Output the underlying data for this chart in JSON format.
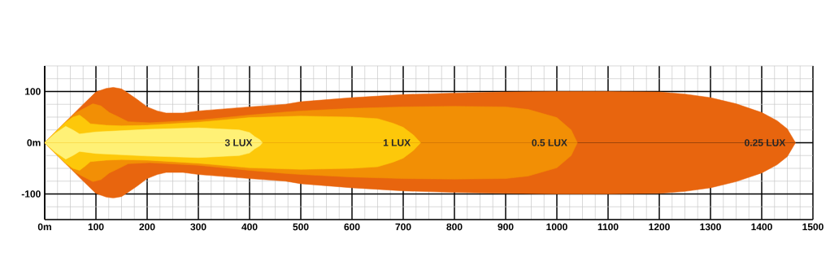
{
  "chart_data": {
    "type": "area",
    "xlim": [
      0,
      1500
    ],
    "ylim": [
      -150,
      150
    ],
    "xticks": [
      {
        "value": 0,
        "label": "0m"
      },
      100,
      200,
      300,
      400,
      500,
      600,
      700,
      800,
      900,
      1000,
      1100,
      1200,
      1300,
      1400,
      1500
    ],
    "yticks": [
      -100,
      {
        "value": 0,
        "label": "0m"
      },
      100
    ],
    "grid": true,
    "legend": false,
    "series": [
      {
        "name": "0.25 LUX",
        "color": "#e8650e",
        "x": [
          0,
          20,
          41,
          70,
          100,
          120,
          134,
          150,
          158,
          180,
          200,
          220,
          237,
          270,
          300,
          400,
          470,
          500,
          600,
          700,
          800,
          900,
          1000,
          1100,
          1200,
          1250,
          1300,
          1350,
          1400,
          1430,
          1450,
          1466
        ],
        "values": [
          0,
          20,
          41,
          70,
          99,
          106,
          108,
          105,
          100,
          85,
          70,
          62,
          58,
          58,
          62,
          70,
          75,
          80,
          88,
          94,
          97,
          99,
          100,
          100,
          99,
          95,
          88,
          76,
          59,
          43,
          27,
          0
        ]
      },
      {
        "color": "#e8650e",
        "x": [
          0,
          20,
          41,
          70,
          100,
          120,
          134,
          150,
          158,
          180,
          200,
          220,
          237,
          270,
          300,
          400,
          470,
          500,
          600,
          700,
          800,
          900,
          1000,
          1100,
          1200,
          1250,
          1300,
          1350,
          1400,
          1430,
          1450,
          1466
        ],
        "values": [
          0,
          -20,
          -41,
          -70,
          -99,
          -106,
          -108,
          -105,
          -100,
          -85,
          -70,
          -62,
          -58,
          -58,
          -62,
          -70,
          -75,
          -80,
          -88,
          -94,
          -97,
          -99,
          -100,
          -100,
          -99,
          -95,
          -88,
          -76,
          -59,
          -43,
          -27,
          0
        ]
      },
      {
        "name": "0.5 LUX",
        "color": "#f28f05",
        "x": [
          0,
          20,
          40,
          60,
          73,
          94,
          110,
          126,
          145,
          163,
          205,
          300,
          400,
          470,
          500,
          600,
          700,
          800,
          900,
          944,
          1000,
          1028,
          1040
        ],
        "values": [
          0,
          20,
          40,
          58,
          65,
          76,
          72,
          59,
          50,
          41,
          39,
          44,
          54,
          60,
          62,
          67,
          70,
          71,
          70,
          65,
          49,
          25,
          0
        ]
      },
      {
        "color": "#f28f05",
        "x": [
          0,
          20,
          40,
          60,
          73,
          94,
          110,
          126,
          145,
          163,
          205,
          300,
          400,
          470,
          500,
          600,
          700,
          800,
          900,
          944,
          1000,
          1028,
          1040
        ],
        "values": [
          0,
          -20,
          -40,
          -58,
          -65,
          -76,
          -72,
          -59,
          -50,
          -41,
          -39,
          -44,
          -54,
          -60,
          -62,
          -67,
          -70,
          -71,
          -70,
          -65,
          -49,
          -25,
          0
        ]
      },
      {
        "name": "1 LUX",
        "color": "#fdc80a",
        "x": [
          0,
          20,
          41,
          55,
          68,
          80,
          89,
          120,
          150,
          200,
          300,
          400,
          500,
          600,
          650,
          680,
          700,
          720,
          734
        ],
        "values": [
          0,
          20,
          40,
          50,
          54,
          45,
          37,
          34,
          33,
          34,
          40,
          49,
          52,
          50,
          47,
          38,
          30,
          15,
          0
        ]
      },
      {
        "color": "#fdc80a",
        "x": [
          0,
          20,
          41,
          55,
          68,
          80,
          89,
          120,
          150,
          200,
          300,
          400,
          500,
          600,
          650,
          680,
          700,
          720,
          734
        ],
        "values": [
          0,
          -20,
          -40,
          -50,
          -54,
          -45,
          -37,
          -34,
          -33,
          -34,
          -40,
          -49,
          -52,
          -50,
          -47,
          -38,
          -30,
          -15,
          0
        ]
      },
      {
        "name": "3 LUX",
        "color": "#fff176",
        "x": [
          0,
          20,
          41,
          55,
          68,
          100,
          200,
          300,
          380,
          400,
          410,
          420,
          425
        ],
        "values": [
          0,
          18,
          32,
          25,
          17,
          21,
          26,
          29,
          25,
          20,
          12,
          6,
          0
        ]
      },
      {
        "color": "#fff176",
        "x": [
          0,
          20,
          41,
          55,
          68,
          100,
          200,
          300,
          380,
          400,
          410,
          420,
          425
        ],
        "values": [
          0,
          -18,
          -32,
          -25,
          -17,
          -21,
          -26,
          -29,
          -25,
          -20,
          -12,
          -6,
          0
        ]
      }
    ]
  }
}
